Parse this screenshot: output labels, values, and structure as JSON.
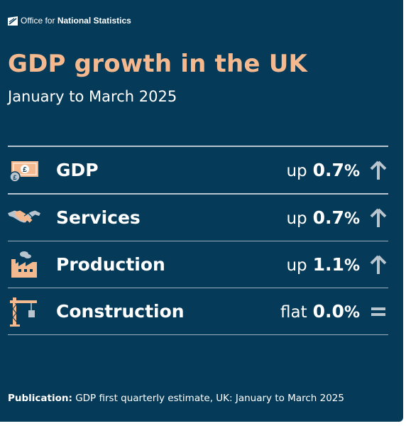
{
  "colors": {
    "background": "#053B59",
    "title": "#F5B98F",
    "icon_accent": "#F5B98F",
    "arrow": "#B8C4CE"
  },
  "header": {
    "logo_prefix": "Office for",
    "logo_strong": "National Statistics",
    "title": "GDP growth in the UK",
    "subtitle": "January to March 2025"
  },
  "rows": [
    {
      "label": "GDP",
      "direction": "up",
      "value": "0.7",
      "unit": "%",
      "icon": "banknote-coin-icon",
      "trend": "up-arrow-icon"
    },
    {
      "label": "Services",
      "direction": "up",
      "value": "0.7",
      "unit": "%",
      "icon": "handshake-icon",
      "trend": "up-arrow-icon"
    },
    {
      "label": "Production",
      "direction": "up",
      "value": "1.1",
      "unit": "%",
      "icon": "factory-icon",
      "trend": "up-arrow-icon"
    },
    {
      "label": "Construction",
      "direction": "flat",
      "value": "0.0",
      "unit": "%",
      "icon": "crane-icon",
      "trend": "equals-icon"
    }
  ],
  "footer": {
    "label": "Publication:",
    "text": "GDP first quarterly estimate, UK: January to March 2025"
  }
}
